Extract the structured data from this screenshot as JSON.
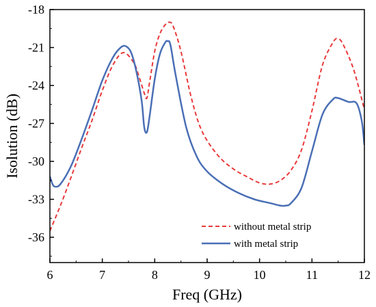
{
  "chart_data": {
    "type": "line",
    "title": "",
    "xlabel": "Freq (GHz)",
    "ylabel": "Isolution (dB)",
    "xlim": [
      6,
      12
    ],
    "ylim": [
      -38,
      -18
    ],
    "xticks": [
      6,
      7,
      8,
      9,
      10,
      11,
      12
    ],
    "yticks": [
      -36,
      -33,
      -30,
      -27,
      -24,
      -21,
      -18
    ],
    "xtick_labels": [
      "6",
      "7",
      "8",
      "9",
      "10",
      "11",
      "12"
    ],
    "ytick_labels": [
      "-36",
      "-33",
      "-30",
      "-27",
      "-24",
      "-21",
      "-18"
    ],
    "grid": false,
    "legend_position": "bottom-right",
    "series": [
      {
        "name": "without metal strip",
        "color": "#e8393b",
        "style": "dashed",
        "x": [
          6.0,
          6.2,
          6.4,
          6.6,
          6.8,
          7.0,
          7.2,
          7.4,
          7.6,
          7.7,
          7.8,
          7.85,
          7.9,
          8.0,
          8.1,
          8.2,
          8.27,
          8.35,
          8.5,
          8.7,
          8.9,
          9.2,
          9.5,
          9.8,
          10.0,
          10.2,
          10.4,
          10.6,
          10.8,
          11.0,
          11.2,
          11.4,
          11.5,
          11.6,
          11.8,
          12.0
        ],
        "y": [
          -35.5,
          -33.5,
          -31.3,
          -29.0,
          -26.8,
          -24.4,
          -22.4,
          -21.4,
          -22.2,
          -23.3,
          -24.6,
          -25.0,
          -23.8,
          -21.3,
          -19.9,
          -19.2,
          -19.0,
          -19.3,
          -21.3,
          -25.0,
          -27.6,
          -29.5,
          -30.6,
          -31.3,
          -31.7,
          -31.8,
          -31.5,
          -30.7,
          -29.1,
          -26.0,
          -22.4,
          -20.6,
          -20.3,
          -20.8,
          -22.8,
          -25.9
        ]
      },
      {
        "name": "with metal strip",
        "color": "#4a6fb5",
        "style": "solid",
        "x": [
          6.0,
          6.05,
          6.1,
          6.2,
          6.4,
          6.6,
          6.8,
          7.0,
          7.2,
          7.35,
          7.45,
          7.55,
          7.65,
          7.75,
          7.8,
          7.85,
          7.9,
          8.0,
          8.1,
          8.2,
          8.25,
          8.3,
          8.4,
          8.6,
          8.8,
          9.0,
          9.3,
          9.6,
          9.9,
          10.2,
          10.4,
          10.5,
          10.6,
          10.8,
          11.0,
          11.2,
          11.4,
          11.5,
          11.7,
          11.85,
          11.95,
          12.0
        ],
        "y": [
          -31.2,
          -31.8,
          -32.0,
          -31.8,
          -30.4,
          -28.3,
          -26.0,
          -23.6,
          -21.8,
          -21.0,
          -20.9,
          -21.4,
          -22.9,
          -25.2,
          -27.3,
          -27.7,
          -26.5,
          -23.5,
          -21.5,
          -20.6,
          -20.5,
          -20.8,
          -23.2,
          -27.3,
          -29.6,
          -30.8,
          -31.8,
          -32.5,
          -33.0,
          -33.3,
          -33.5,
          -33.5,
          -33.3,
          -32.1,
          -29.2,
          -26.3,
          -25.1,
          -25.0,
          -25.3,
          -25.4,
          -26.8,
          -28.7
        ]
      }
    ]
  }
}
